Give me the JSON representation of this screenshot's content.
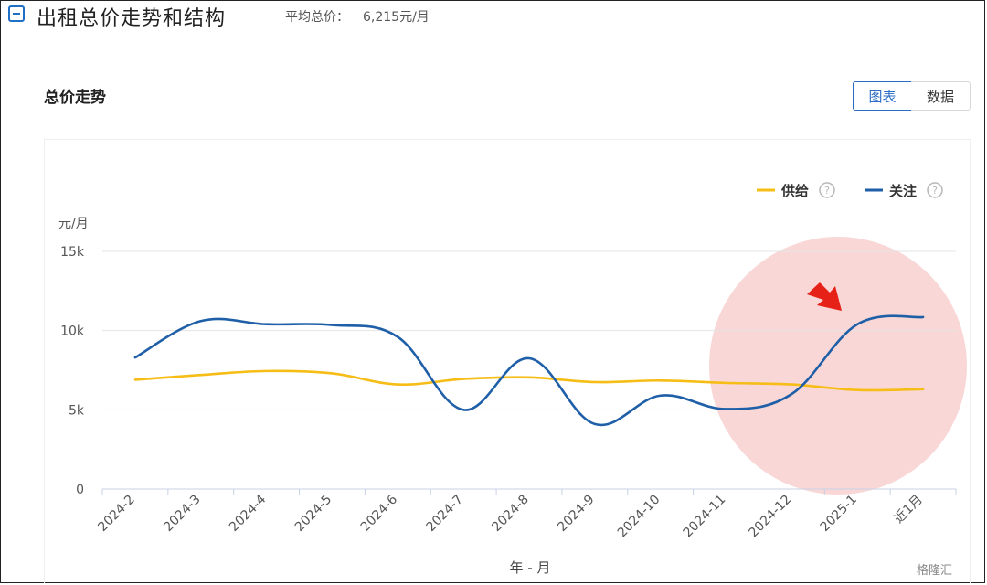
{
  "header": {
    "title": "出租总价走势和结构",
    "avg_label": "平均总价：",
    "avg_value": "6,215元/月"
  },
  "card": {
    "title": "总价走势",
    "toggle_chart": "图表",
    "toggle_data": "数据"
  },
  "watermark": "格隆汇",
  "colors": {
    "supply": "#F6BD16",
    "attention": "#1E5FA8",
    "highlight": "#F4B6B6",
    "arrow": "#E62117"
  },
  "chart_data": {
    "type": "line",
    "ylabel": "元/月",
    "xlabel": "年 - 月",
    "categories": [
      "2024-2",
      "2024-3",
      "2024-4",
      "2024-5",
      "2024-6",
      "2024-7",
      "2024-8",
      "2024-9",
      "2024-10",
      "2024-11",
      "2024-12",
      "2025-1",
      "近1月"
    ],
    "yticks": [
      "0",
      "5k",
      "10k",
      "15k"
    ],
    "ylim": [
      0,
      15000
    ],
    "grid": true,
    "legend_position": "top-right",
    "series": [
      {
        "name": "供给",
        "color": "#F6BD16",
        "help_icon": "question-icon",
        "values": [
          6900,
          7200,
          7450,
          7300,
          6600,
          6950,
          7050,
          6750,
          6850,
          6700,
          6600,
          6250,
          6300
        ]
      },
      {
        "name": "关注",
        "color": "#1E5FA8",
        "help_icon": "question-icon",
        "values": [
          8300,
          10600,
          10400,
          10350,
          9600,
          5000,
          8250,
          4100,
          5900,
          5050,
          6000,
          10400,
          10850
        ]
      }
    ],
    "annotation": {
      "type": "highlight-circle-with-arrow",
      "target_categories": [
        "2024-12",
        "2025-1",
        "近1月"
      ]
    }
  }
}
